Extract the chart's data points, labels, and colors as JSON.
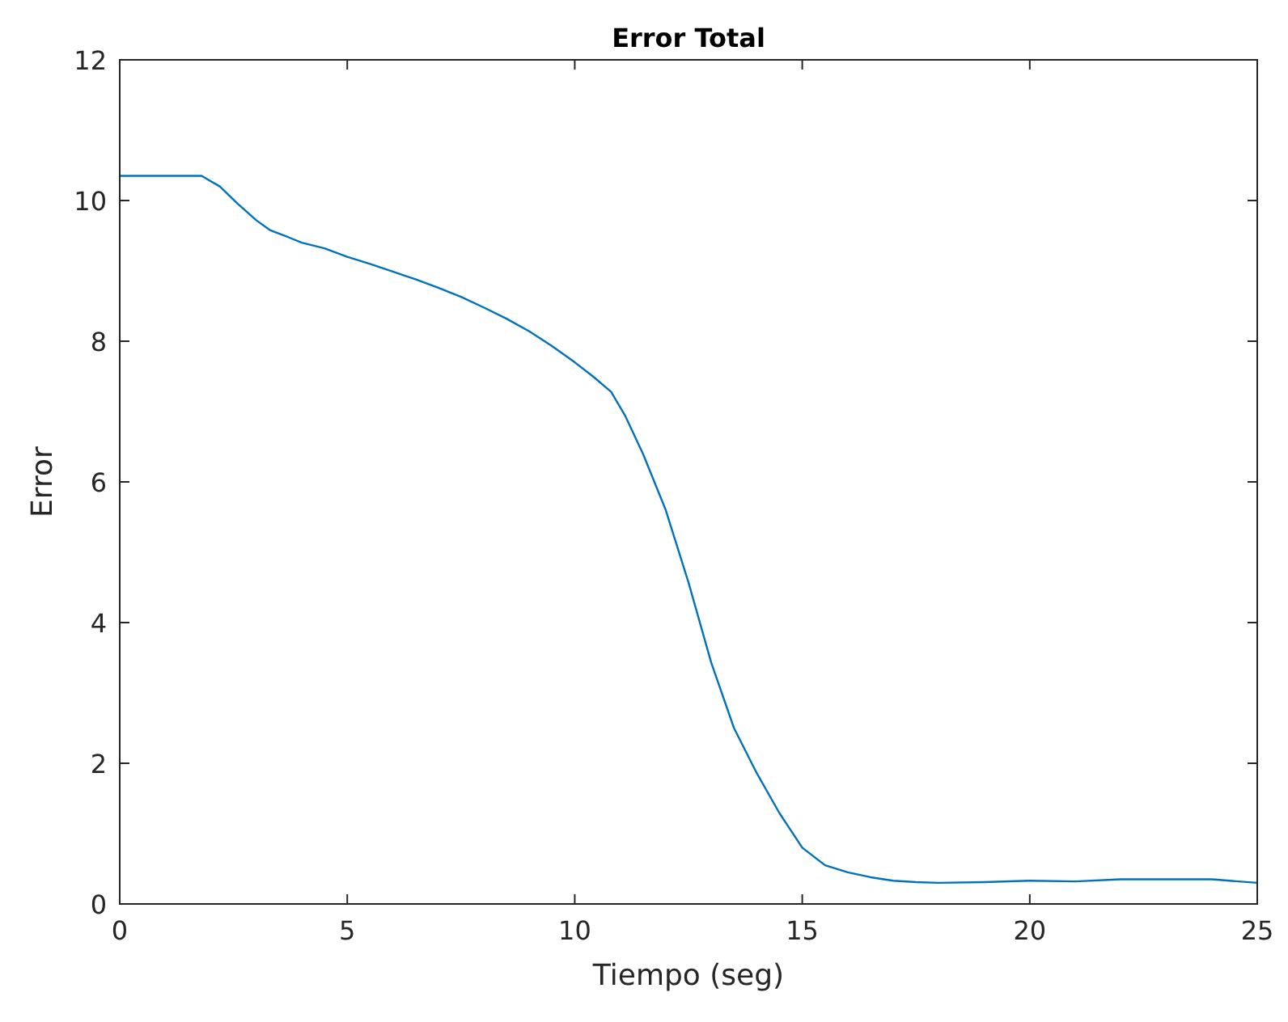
{
  "chart_data": {
    "type": "line",
    "title": "Error Total",
    "xlabel": "Tiempo (seg)",
    "ylabel": "Error",
    "xlim": [
      0,
      25
    ],
    "ylim": [
      0,
      12
    ],
    "xticks": [
      0,
      5,
      10,
      15,
      20,
      25
    ],
    "yticks": [
      0,
      2,
      4,
      6,
      8,
      10,
      12
    ],
    "grid": false,
    "series": [
      {
        "color": "#0072bd",
        "x": [
          0,
          1,
          1.8,
          2.2,
          2.6,
          3,
          3.3,
          3.7,
          4,
          4.5,
          5,
          5.5,
          6,
          6.5,
          7,
          7.5,
          8,
          8.5,
          9,
          9.5,
          10,
          10.4,
          10.8,
          11.1,
          11.5,
          12,
          12.5,
          13,
          13.5,
          14,
          14.5,
          15,
          15.5,
          16,
          16.5,
          17,
          17.5,
          18,
          19,
          20,
          21,
          22,
          23,
          24,
          25
        ],
        "values": [
          10.35,
          10.35,
          10.35,
          10.2,
          9.95,
          9.72,
          9.58,
          9.48,
          9.4,
          9.32,
          9.2,
          9.1,
          8.99,
          8.88,
          8.76,
          8.63,
          8.48,
          8.32,
          8.14,
          7.93,
          7.7,
          7.5,
          7.28,
          6.95,
          6.4,
          5.6,
          4.57,
          3.43,
          2.5,
          1.86,
          1.29,
          0.8,
          0.55,
          0.45,
          0.38,
          0.33,
          0.31,
          0.3,
          0.31,
          0.33,
          0.32,
          0.35,
          0.35,
          0.35,
          0.3
        ]
      }
    ]
  }
}
